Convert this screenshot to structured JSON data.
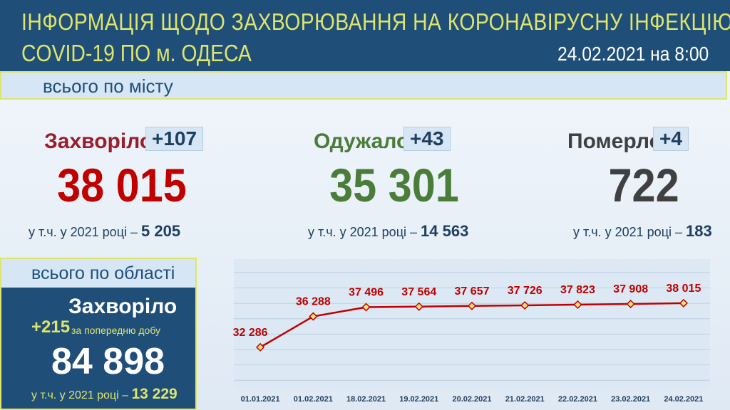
{
  "header": {
    "title_line1": "ІНФОРМАЦІЯ ЩОДО ЗАХВОРЮВАННЯ НА КОРОНАВІРУСНУ ІНФЕКЦІЮ",
    "title_line2": "COVID-19 ПО м. ОДЕСА",
    "date": "24.02.2021 на 8:00"
  },
  "city": {
    "label": "всього по місту",
    "stats": [
      {
        "label": "Захворіло",
        "delta": "+107",
        "total": "38 015",
        "year_note": "у т.ч. у 2021 році –",
        "year_value": "5 205"
      },
      {
        "label": "Одужало",
        "delta": "+43",
        "total": "35 301",
        "year_note": "у т.ч. у 2021 році –",
        "year_value": "14 563"
      },
      {
        "label": "Померло",
        "delta": "+4",
        "total": "722",
        "year_note": "у т.ч. у 2021 році –",
        "year_value": "183"
      }
    ]
  },
  "region": {
    "label": "всього по області",
    "title": "Захворіло",
    "delta": "+215",
    "delta_note": "за попередню добу",
    "total": "84 898",
    "year_note": "у т.ч. у 2021 році –",
    "year_value": "13 229"
  },
  "chart_data": {
    "type": "line",
    "categories": [
      "01.01.2021",
      "01.02.2021",
      "18.02.2021",
      "19.02.2021",
      "20.02.2021",
      "21.02.2021",
      "22.02.2021",
      "23.02.2021",
      "24.02.2021"
    ],
    "values": [
      32286,
      36288,
      37496,
      37564,
      37657,
      37726,
      37823,
      37908,
      38015
    ],
    "value_labels": [
      "32 286",
      "36 288",
      "37 496",
      "37 564",
      "37 657",
      "37 726",
      "37 823",
      "37 908",
      "38 015"
    ],
    "color": "#c00000",
    "ylim": [
      27000,
      43000
    ],
    "yticks": [
      28000,
      30000,
      32000,
      34000,
      36000,
      38000,
      40000,
      42000
    ],
    "grid": true
  }
}
